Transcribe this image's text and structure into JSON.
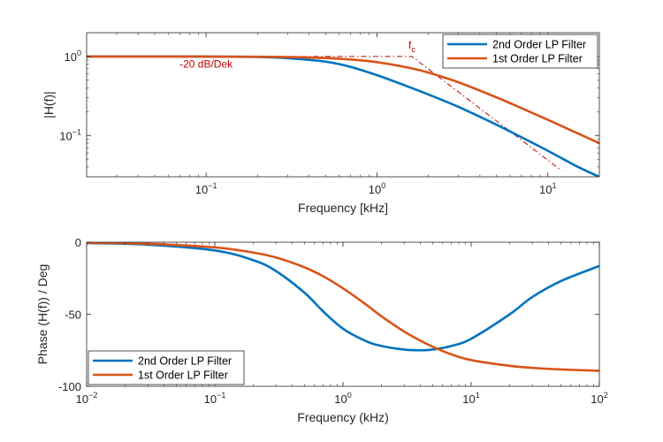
{
  "colors": {
    "series1": "#0072BD",
    "series2": "#D95319",
    "annotation": "#C00000",
    "axis": "#262626",
    "grid": "#EBEBEB"
  },
  "chart_data": [
    {
      "type": "line",
      "title": "",
      "xlabel": "Frequency [kHz]",
      "ylabel": "|H(f)|",
      "xscale": "log",
      "yscale": "log",
      "xlim": [
        0.02,
        20
      ],
      "ylim": [
        0.03,
        2
      ],
      "xticks": [
        0.1,
        1,
        10
      ],
      "xtick_labels": [
        {
          "base": "10",
          "exp": "−1"
        },
        {
          "base": "10",
          "exp": "0"
        },
        {
          "base": "10",
          "exp": "1"
        }
      ],
      "yticks": [
        0.1,
        1
      ],
      "ytick_labels": [
        {
          "base": "10",
          "exp": "−1"
        },
        {
          "base": "10",
          "exp": "0"
        }
      ],
      "grid": false,
      "legend_position": "top-right",
      "x": [
        0.02,
        0.05,
        0.1,
        0.2,
        0.3,
        0.5,
        0.7,
        1,
        1.5,
        2,
        3,
        5,
        7,
        10,
        15,
        20
      ],
      "series": [
        {
          "name": "2nd Order LP Filter",
          "color": "#0072BD",
          "values": [
            1.0,
            0.999,
            0.997,
            0.985,
            0.95,
            0.86,
            0.74,
            0.58,
            0.42,
            0.33,
            0.23,
            0.137,
            0.095,
            0.064,
            0.04,
            0.03
          ]
        },
        {
          "name": "1st Order LP Filter",
          "color": "#D95319",
          "values": [
            1.0,
            0.999,
            0.998,
            0.992,
            0.982,
            0.954,
            0.916,
            0.848,
            0.727,
            0.625,
            0.471,
            0.304,
            0.222,
            0.158,
            0.106,
            0.08
          ]
        }
      ],
      "asymptote": {
        "points": [
          [
            0.02,
            1.0
          ],
          [
            1.6,
            1.0
          ],
          [
            12,
            0.036
          ]
        ],
        "color": "#C00000"
      },
      "annotations": [
        {
          "text": "f",
          "sub": "c",
          "x": 1.6,
          "y": 1.25
        },
        {
          "text": "-20 dB/Dek",
          "x": 0.1,
          "y": 0.72
        }
      ]
    },
    {
      "type": "line",
      "title": "",
      "xlabel": "Frequency (kHz)",
      "ylabel": "Phase (H(f)) / Deg",
      "xscale": "log",
      "yscale": "linear",
      "xlim": [
        0.01,
        100
      ],
      "ylim": [
        -100,
        0
      ],
      "xticks": [
        0.01,
        0.1,
        1,
        10,
        100
      ],
      "xtick_labels": [
        {
          "base": "10",
          "exp": "−2"
        },
        {
          "base": "10",
          "exp": "−1"
        },
        {
          "base": "10",
          "exp": "0"
        },
        {
          "base": "10",
          "exp": "1"
        },
        {
          "base": "10",
          "exp": "2"
        }
      ],
      "yticks": [
        -100,
        -50,
        0
      ],
      "ytick_labels": [
        "-100",
        "-50",
        "0"
      ],
      "grid": false,
      "legend_position": "bottom-left",
      "x": [
        0.01,
        0.03,
        0.1,
        0.2,
        0.3,
        0.5,
        0.7,
        1,
        1.5,
        2,
        3,
        4,
        5,
        7,
        10,
        20,
        30,
        50,
        100
      ],
      "series": [
        {
          "name": "2nd Order LP Filter",
          "color": "#0072BD",
          "values": [
            -0.6,
            -1.7,
            -5.7,
            -12.5,
            -20,
            -35,
            -48,
            -60,
            -68.5,
            -72,
            -74.5,
            -75,
            -74.5,
            -72,
            -67,
            -50,
            -38,
            -27,
            -16.5
          ]
        },
        {
          "name": "1st Order LP Filter",
          "color": "#D95319",
          "values": [
            -0.4,
            -1.1,
            -3.6,
            -7.2,
            -10.6,
            -17.4,
            -23.6,
            -32,
            -43,
            -51.5,
            -62,
            -68.2,
            -72.5,
            -77.8,
            -81.8,
            -85.8,
            -87.2,
            -88.3,
            -89.2
          ]
        }
      ]
    }
  ]
}
